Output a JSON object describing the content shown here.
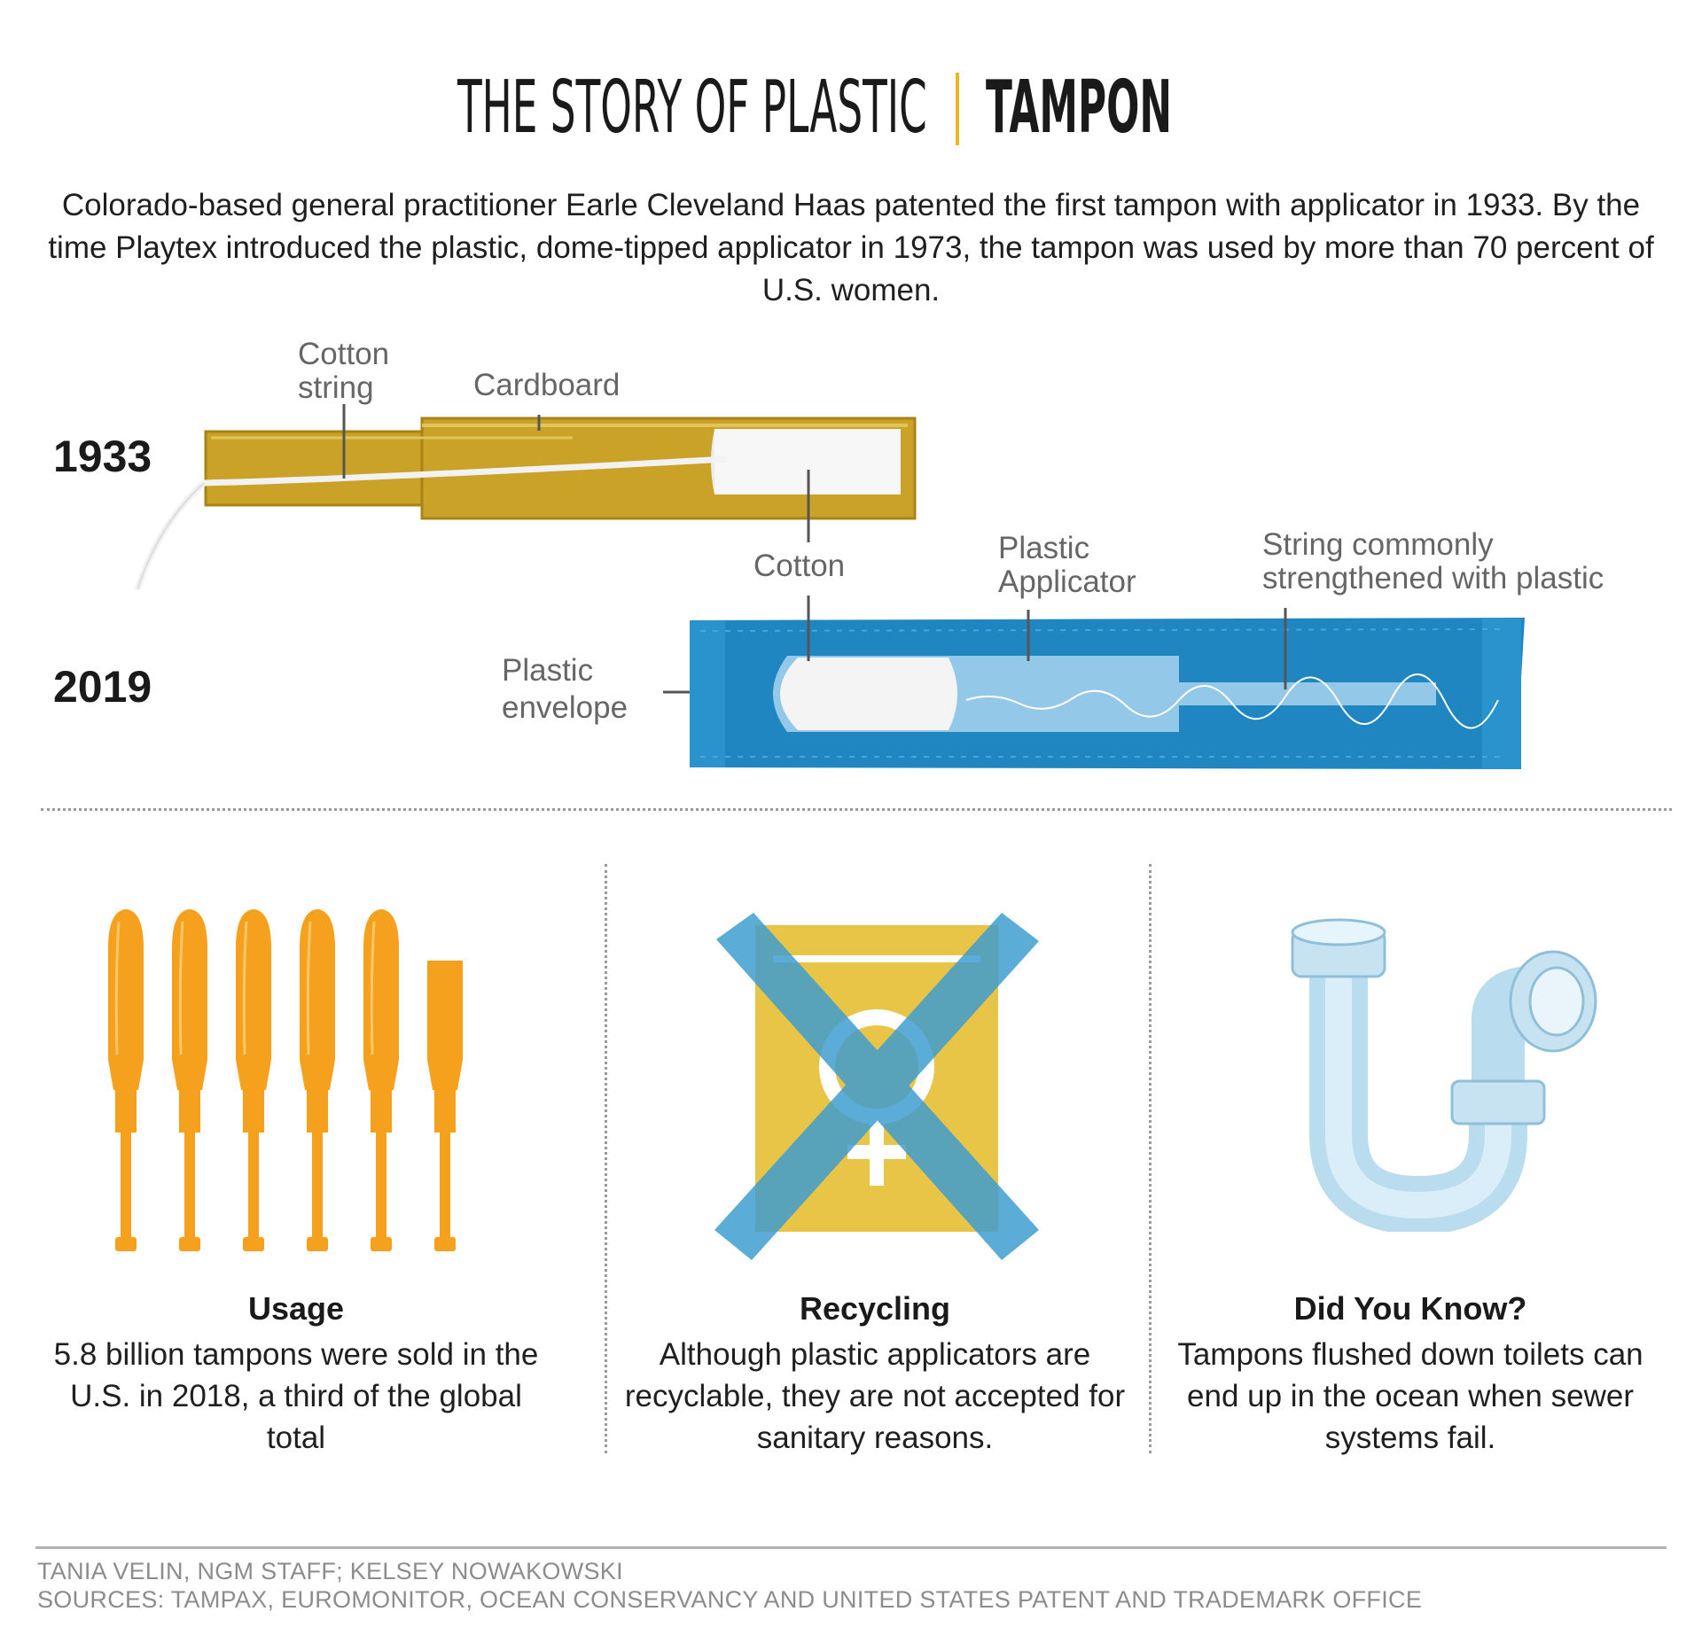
{
  "header": {
    "title": "THE STORY OF PLASTIC",
    "subtitle": "TAMPON"
  },
  "intro": "Colorado-based general practitioner Earle Cleveland Haas patented the first tampon with applicator in 1933. By the time Playtex introduced the plastic, dome-tipped applicator in 1973, the tampon was used by more than 70 percent of U.S. women.",
  "diagram": {
    "year_1933": "1933",
    "year_2019": "2019",
    "labels": {
      "cotton_string_1": "Cotton",
      "cotton_string_2": "string",
      "cardboard": "Cardboard",
      "cotton": "Cotton",
      "plastic_applicator_1": "Plastic",
      "plastic_applicator_2": "Applicator",
      "string_plastic_1": "String commonly",
      "string_plastic_2": "strengthened with plastic",
      "plastic_envelope_1": "Plastic",
      "plastic_envelope_2": "envelope"
    },
    "colors": {
      "cardboard": "#c9a227",
      "envelope": "#1f86c1",
      "applicator": "#f5a11e",
      "recycle_bg": "#e8c447",
      "pipe": "#cfe6f3"
    }
  },
  "panels": [
    {
      "title": "Usage",
      "text": "5.8 billion tampons were sold in the U.S. in 2018, a third of the global total",
      "applicator_count": 5.5
    },
    {
      "title": "Recycling",
      "text": "Although plastic applicators are recyclable, they are not accepted for sanitary reasons."
    },
    {
      "title": "Did You Know?",
      "text": "Tampons flushed down toilets can end up in the ocean when sewer systems fail."
    }
  ],
  "credits": {
    "line1": "TANIA VELIN, NGM STAFF; KELSEY NOWAKOWSKI",
    "line2": "SOURCES: TAMPAX, EUROMONITOR, OCEAN CONSERVANCY AND UNITED STATES PATENT AND TRADEMARK OFFICE"
  }
}
